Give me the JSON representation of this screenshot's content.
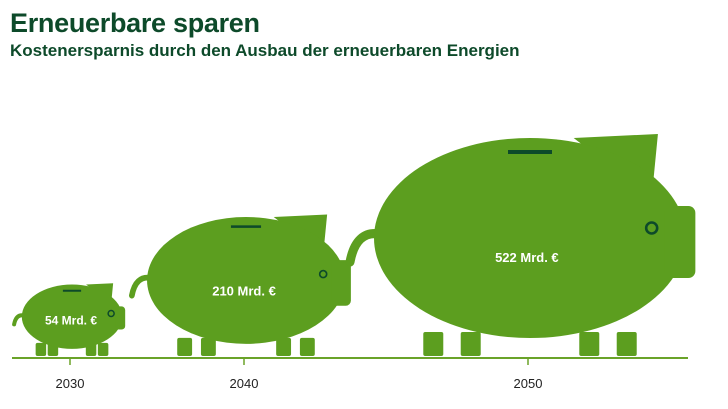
{
  "title": "Erneuerbare sparen",
  "subtitle": "Kostenersparnis durch den Ausbau der erneuerbaren Energien",
  "colors": {
    "pig": "#5c9e1f",
    "slot": "#0d4a2a",
    "axis": "#6aa329",
    "title": "#0d4a2a"
  },
  "chart_data": {
    "type": "bar",
    "categories": [
      "2030",
      "2040",
      "2050"
    ],
    "values": [
      54,
      210,
      522
    ],
    "value_labels": [
      "54 Mrd. €",
      "210 Mrd. €",
      "522 Mrd. €"
    ],
    "unit": "Mrd. €",
    "title": "Erneuerbare sparen",
    "subtitle": "Kostenersparnis durch den Ausbau der erneuerbaren Energien",
    "xlabel": "",
    "ylabel": "",
    "grid": false,
    "legend": "none"
  }
}
